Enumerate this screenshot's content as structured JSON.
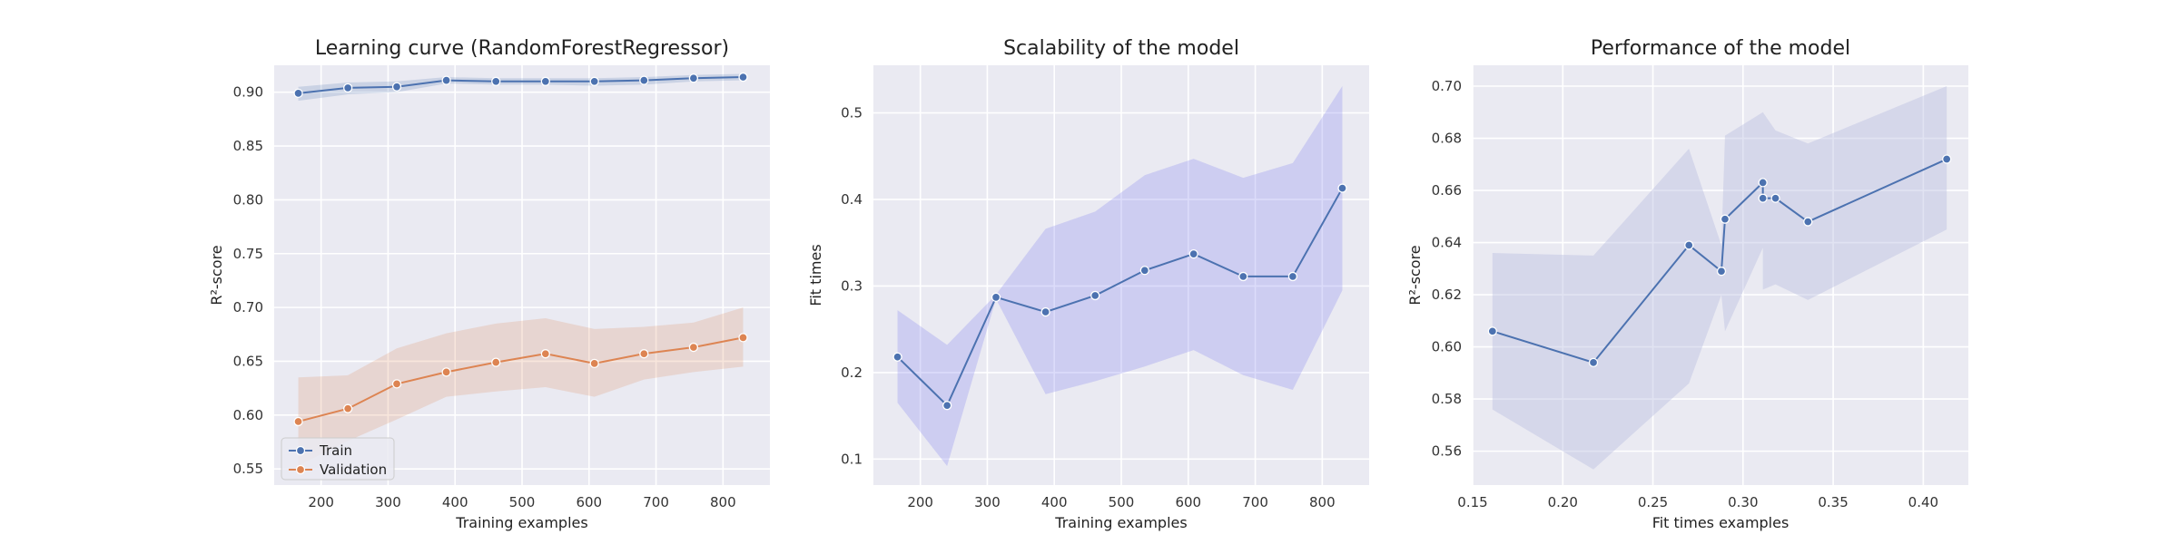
{
  "colors": {
    "plot_bg": "#eaeaf2",
    "grid": "#ffffff",
    "train": "#4c72b0",
    "validation": "#dd8452",
    "fit_band": "#8b8bf0",
    "perf_band": "#b7bde0"
  },
  "chart_data": [
    {
      "type": "line",
      "title": "Learning curve (RandomForestRegressor)",
      "xlabel": "Training examples",
      "ylabel": "R²-score",
      "xlim": [
        130,
        870
      ],
      "ylim": [
        0.535,
        0.925
      ],
      "xticks": [
        200,
        300,
        400,
        500,
        600,
        700,
        800
      ],
      "yticks": [
        0.55,
        0.6,
        0.65,
        0.7,
        0.75,
        0.8,
        0.85,
        0.9
      ],
      "grid": true,
      "legend": "lower-left",
      "series": [
        {
          "name": "Train",
          "x": [
            166,
            240,
            313,
            387,
            461,
            535,
            608,
            682,
            756,
            830
          ],
          "y": [
            0.899,
            0.904,
            0.905,
            0.911,
            0.91,
            0.91,
            0.91,
            0.911,
            0.913,
            0.914
          ],
          "band_low": [
            0.892,
            0.898,
            0.9,
            0.908,
            0.907,
            0.907,
            0.906,
            0.907,
            0.91,
            0.911
          ],
          "band_high": [
            0.905,
            0.909,
            0.91,
            0.914,
            0.913,
            0.913,
            0.913,
            0.914,
            0.916,
            0.917
          ]
        },
        {
          "name": "Validation",
          "x": [
            166,
            240,
            313,
            387,
            461,
            535,
            608,
            682,
            756,
            830
          ],
          "y": [
            0.594,
            0.606,
            0.629,
            0.64,
            0.649,
            0.657,
            0.648,
            0.657,
            0.663,
            0.672
          ],
          "band_low": [
            0.553,
            0.576,
            0.596,
            0.617,
            0.622,
            0.626,
            0.617,
            0.633,
            0.64,
            0.645
          ],
          "band_high": [
            0.635,
            0.637,
            0.662,
            0.676,
            0.685,
            0.69,
            0.68,
            0.682,
            0.686,
            0.7
          ]
        }
      ]
    },
    {
      "type": "line",
      "title": "Scalability of the model",
      "xlabel": "Training examples",
      "ylabel": "Fit times",
      "xlim": [
        130,
        870
      ],
      "ylim": [
        0.07,
        0.555
      ],
      "xticks": [
        200,
        300,
        400,
        500,
        600,
        700,
        800
      ],
      "yticks": [
        0.1,
        0.2,
        0.3,
        0.4,
        0.5
      ],
      "grid": true,
      "series": [
        {
          "x": [
            166,
            240,
            313,
            387,
            461,
            535,
            608,
            682,
            756,
            830
          ],
          "y": [
            0.218,
            0.162,
            0.287,
            0.27,
            0.289,
            0.318,
            0.337,
            0.311,
            0.311,
            0.413
          ],
          "band_low": [
            0.165,
            0.092,
            0.285,
            0.175,
            0.19,
            0.207,
            0.226,
            0.197,
            0.18,
            0.295
          ],
          "band_high": [
            0.272,
            0.232,
            0.29,
            0.366,
            0.386,
            0.428,
            0.447,
            0.425,
            0.442,
            0.531
          ]
        }
      ]
    },
    {
      "type": "line",
      "title": "Performance of the model",
      "xlabel": "Fit times examples",
      "ylabel": "R²-score",
      "xlim": [
        0.15,
        0.425
      ],
      "ylim": [
        0.547,
        0.708
      ],
      "xticks": [
        0.15,
        0.2,
        0.25,
        0.3,
        0.35,
        0.4
      ],
      "yticks": [
        0.56,
        0.58,
        0.6,
        0.62,
        0.64,
        0.66,
        0.68,
        0.7
      ],
      "grid": true,
      "series": [
        {
          "x": [
            0.161,
            0.217,
            0.27,
            0.288,
            0.29,
            0.311,
            0.311,
            0.318,
            0.336,
            0.413
          ],
          "y": [
            0.606,
            0.594,
            0.639,
            0.629,
            0.649,
            0.663,
            0.657,
            0.657,
            0.648,
            0.672
          ],
          "band_low": [
            0.576,
            0.553,
            0.586,
            0.62,
            0.606,
            0.638,
            0.622,
            0.624,
            0.618,
            0.645
          ],
          "band_high": [
            0.636,
            0.635,
            0.676,
            0.639,
            0.681,
            0.69,
            0.69,
            0.683,
            0.678,
            0.7
          ]
        }
      ]
    }
  ]
}
